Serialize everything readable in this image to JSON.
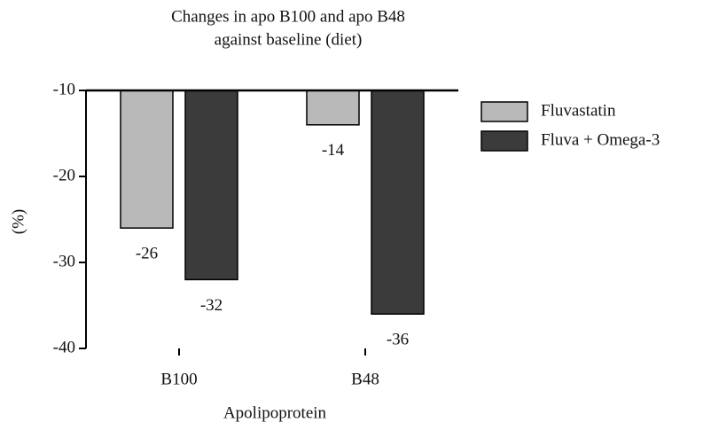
{
  "chart_data": {
    "type": "bar",
    "title": [
      "Changes in apo B100 and apo B48",
      "against baseline (diet)"
    ],
    "x_label": "Apolipoprotein",
    "y_label": "(%)",
    "categories": [
      "B100",
      "B48"
    ],
    "series": [
      {
        "name": "Fluvastatin",
        "color": "#b9b9b9",
        "values": [
          -26,
          -14
        ]
      },
      {
        "name": "Fluva + Omega-3",
        "color": "#3b3b3c",
        "values": [
          -32,
          -36
        ]
      }
    ],
    "ylim": [
      -40,
      -10
    ],
    "yticks": [
      -40,
      -30,
      -20,
      -10
    ],
    "legend": "right"
  }
}
